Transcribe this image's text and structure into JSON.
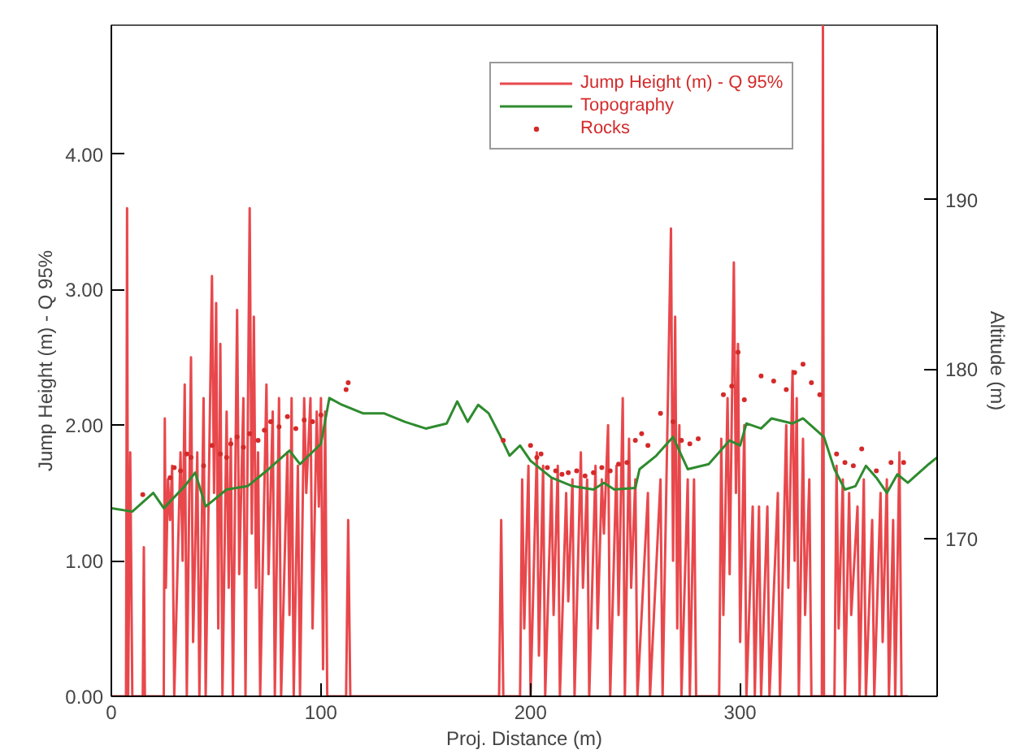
{
  "chart_data": {
    "type": "line",
    "xlabel": "Proj. Distance (m)",
    "ylabel": "Jump Height (m) - Q 95%",
    "y2label": "Altitude (m)",
    "xlim": [
      0,
      394
    ],
    "xticks": [
      0,
      100,
      200,
      300
    ],
    "ylim": [
      0,
      4.95
    ],
    "yticks": [
      {
        "value": 0,
        "label": "0.00"
      },
      {
        "value": 1,
        "label": "1.00"
      },
      {
        "value": 2,
        "label": "2.00"
      },
      {
        "value": 3,
        "label": "3.00"
      },
      {
        "value": 4,
        "label": "4.00"
      }
    ],
    "y2lim": [
      160.7,
      200.3
    ],
    "y2ticks": [
      170,
      180,
      190
    ],
    "grid": false,
    "legend": "top right",
    "series": [
      {
        "name": "Jump Height (m) - Q 95%",
        "color": "#e8484c",
        "x": [
          0,
          7,
          7.5,
          8,
          9,
          10,
          15,
          15.5,
          16,
          25,
          25.5,
          26,
          27,
          28,
          29,
          30,
          33,
          34,
          35,
          36,
          38,
          39,
          41,
          42,
          44,
          45,
          48,
          49,
          50,
          51,
          52,
          53,
          55,
          56,
          57,
          58,
          60,
          61,
          63,
          64,
          66,
          67,
          68,
          69,
          70,
          71,
          74,
          75,
          77,
          78,
          80,
          81,
          84,
          85,
          86,
          87,
          89,
          90,
          92,
          93,
          95,
          96,
          98,
          99,
          100,
          101,
          102,
          103,
          112,
          113,
          114,
          185,
          186,
          187,
          195,
          196,
          197,
          199,
          200,
          203,
          204,
          206,
          207,
          210,
          211,
          213,
          214,
          217,
          218,
          220,
          221,
          224,
          225,
          227,
          228,
          231,
          232,
          234,
          235,
          237,
          238,
          241,
          242,
          244,
          245,
          247,
          248,
          250,
          251,
          256,
          257,
          262,
          263,
          267,
          268,
          269,
          270,
          271,
          272,
          275,
          276,
          278,
          279,
          290,
          291,
          292,
          294,
          295,
          297,
          298,
          299,
          300,
          302,
          303,
          306,
          307,
          309,
          310,
          313,
          314,
          318,
          319,
          322,
          323,
          325,
          326,
          327,
          328,
          330,
          331,
          333,
          334,
          339,
          339.5,
          340,
          345,
          346,
          347,
          349,
          350,
          352,
          353,
          356,
          357,
          359,
          360,
          363,
          364,
          367,
          368,
          370,
          371,
          373,
          374,
          376,
          377,
          380
        ],
        "values": [
          0,
          0,
          3.6,
          0,
          1.8,
          0,
          0,
          1.1,
          0,
          0,
          2.05,
          0.8,
          1.6,
          1.3,
          1.7,
          0,
          1.8,
          1.0,
          2.3,
          0,
          2.5,
          0.4,
          1.8,
          0,
          2.2,
          0,
          3.1,
          1.5,
          2.9,
          0.5,
          2.6,
          0,
          2.1,
          0.8,
          1.9,
          0,
          2.85,
          0.9,
          2.2,
          0,
          3.6,
          1.2,
          2.8,
          0.8,
          1.8,
          0,
          2.3,
          0.9,
          2.1,
          0,
          2.2,
          0,
          1.8,
          0.6,
          2.2,
          0,
          1.7,
          0,
          2.2,
          1.5,
          2.2,
          0.5,
          2.1,
          1.4,
          2.2,
          0.2,
          2.1,
          0,
          0,
          1.3,
          0,
          0,
          1.3,
          0,
          0,
          1.6,
          0.5,
          1.7,
          0,
          1.8,
          0.3,
          1.7,
          0,
          1.6,
          0.6,
          1.7,
          0,
          1.5,
          0.7,
          1.6,
          0,
          1.8,
          0.8,
          1.6,
          0,
          1.7,
          0.5,
          1.6,
          1.2,
          2.0,
          0,
          1.7,
          0.6,
          2.2,
          0,
          1.9,
          0.8,
          1.6,
          0,
          1.5,
          0,
          1.6,
          0,
          3.45,
          1.0,
          2.8,
          0.5,
          2.0,
          0,
          1.6,
          0,
          1.6,
          0,
          0,
          1.9,
          0.6,
          2.2,
          0.9,
          3.2,
          1.5,
          2.6,
          0.4,
          2.0,
          0,
          1.4,
          0,
          1.4,
          0,
          1.4,
          0,
          1.5,
          0,
          2.0,
          0.8,
          2.4,
          1.0,
          2.2,
          0,
          1.9,
          0.6,
          1.6,
          0,
          0,
          4.95,
          0,
          0,
          1.7,
          0.5,
          1.6,
          0,
          1.5,
          0.6,
          1.4,
          0,
          1.6,
          0,
          1.3,
          0,
          1.5,
          0.4,
          1.6,
          0,
          1.3,
          0,
          1.8,
          0,
          0
        ]
      },
      {
        "name": "Topography",
        "axis": "y2",
        "color": "#2e8b2e",
        "x": [
          0,
          10,
          20,
          25,
          35,
          40,
          45,
          55,
          65,
          75,
          85,
          90,
          100,
          104,
          110,
          120,
          130,
          140,
          150,
          160,
          165,
          170,
          175,
          180,
          185,
          190,
          195,
          200,
          210,
          220,
          230,
          235,
          240,
          250,
          252,
          260,
          265,
          268,
          275,
          285,
          295,
          300,
          303,
          310,
          315,
          325,
          330,
          340,
          345,
          350,
          355,
          360,
          365,
          370,
          375,
          380,
          390,
          394
        ],
        "values": [
          171.8,
          171.6,
          172.7,
          171.8,
          173.1,
          173.9,
          171.9,
          172.9,
          173.1,
          174.1,
          175.2,
          174.4,
          175.6,
          178.3,
          177.9,
          177.4,
          177.4,
          176.9,
          176.5,
          176.8,
          178.1,
          176.9,
          177.9,
          177.4,
          176.2,
          174.9,
          175.5,
          174.6,
          173.6,
          173.1,
          172.9,
          173.3,
          172.9,
          173.0,
          174.1,
          174.9,
          175.6,
          176.0,
          174.1,
          174.4,
          175.8,
          175.5,
          176.8,
          176.5,
          177.1,
          176.8,
          177.1,
          176.0,
          174.1,
          172.9,
          173.1,
          174.3,
          173.6,
          172.7,
          173.8,
          173.3,
          174.4,
          174.8
        ]
      },
      {
        "name": "Rocks",
        "type": "scatter",
        "axis": "y2",
        "color": "#d42a2a",
        "marker": "circle",
        "x": [
          15,
          28,
          30,
          33,
          36,
          38,
          44,
          48,
          52,
          55,
          57,
          60,
          63,
          66,
          70,
          73,
          76,
          80,
          84,
          88,
          92,
          96,
          100,
          112,
          113,
          187,
          200,
          203,
          205,
          208,
          212,
          215,
          218,
          222,
          226,
          230,
          234,
          238,
          242,
          246,
          250,
          253,
          256,
          262,
          268,
          272,
          276,
          280,
          292,
          296,
          299,
          302,
          310,
          316,
          322,
          326,
          330,
          334,
          338,
          346,
          350,
          354,
          358,
          365,
          372,
          378
        ],
        "values": [
          172.6,
          173.6,
          174.2,
          174.0,
          175.0,
          174.8,
          174.3,
          175.5,
          175.0,
          174.8,
          175.6,
          176.0,
          175.4,
          176.2,
          175.8,
          176.4,
          176.9,
          176.6,
          177.2,
          176.5,
          177.0,
          176.9,
          177.3,
          178.8,
          179.2,
          175.8,
          175.5,
          174.8,
          175.0,
          174.2,
          174.0,
          173.8,
          173.9,
          174.0,
          173.7,
          173.9,
          174.2,
          174.0,
          174.4,
          174.5,
          175.8,
          176.2,
          175.5,
          177.4,
          176.9,
          175.8,
          175.6,
          175.9,
          178.5,
          179.0,
          181.0,
          178.2,
          179.6,
          179.3,
          178.8,
          179.8,
          180.3,
          179.2,
          178.5,
          175.0,
          174.5,
          174.3,
          175.3,
          174.0,
          174.5,
          174.5
        ]
      }
    ]
  }
}
